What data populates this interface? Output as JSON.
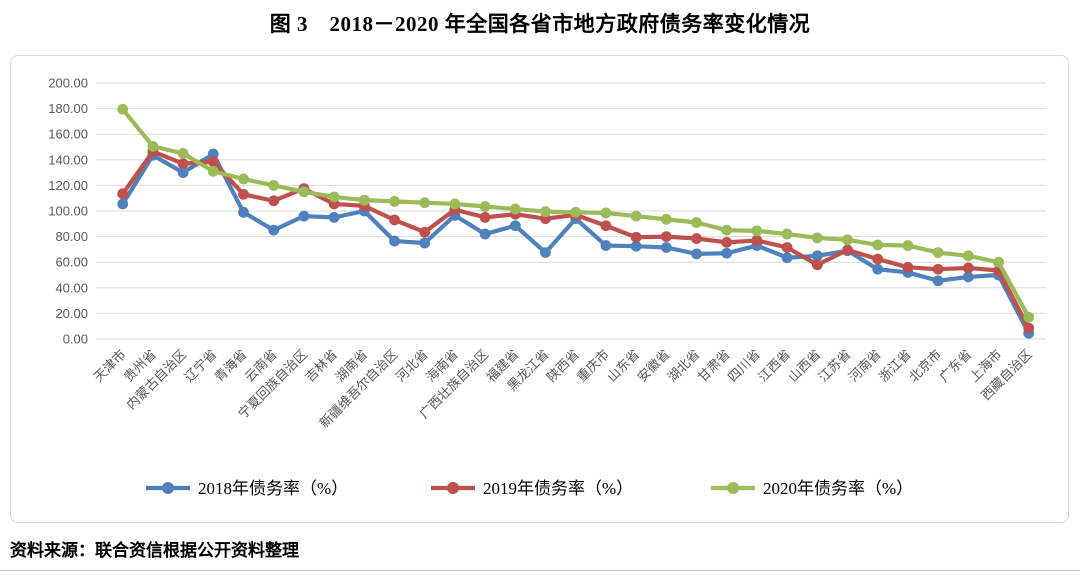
{
  "title": "图 3　2018－2020 年全国各省市地方政府债务率变化情况",
  "source_note": "资料来源：联合资信根据公开资料整理",
  "colors": {
    "series_2018": "#4F81BD",
    "series_2019": "#C0504D",
    "series_2020": "#9BBB59",
    "gridline": "#d9d9d9",
    "axis_text": "#595959",
    "box_border": "#d9d9d9"
  },
  "chart_data": {
    "type": "line",
    "title": "图 3　2018－2020 年全国各省市地方政府债务率变化情况",
    "xlabel": "",
    "ylabel": "",
    "ylim": [
      0,
      200
    ],
    "ytick_step": 20,
    "ytick_decimals": 2,
    "grid": true,
    "legend_position": "bottom",
    "categories": [
      "天津市",
      "贵州省",
      "内蒙古自治区",
      "辽宁省",
      "青海省",
      "云南省",
      "宁夏回族自治区",
      "吉林省",
      "湖南省",
      "新疆维吾尔自治区",
      "河北省",
      "海南省",
      "广西壮族自治区",
      "福建省",
      "黑龙江省",
      "陕西省",
      "重庆市",
      "山东省",
      "安徽省",
      "湖北省",
      "甘肃省",
      "四川省",
      "江西省",
      "山西省",
      "江苏省",
      "河南省",
      "浙江省",
      "北京市",
      "广东省",
      "上海市",
      "西藏自治区"
    ],
    "series": [
      {
        "name": "2018年债务率（%）",
        "color_key": "series_2018",
        "values": [
          105.5,
          143.5,
          130.0,
          144.5,
          99.0,
          85.0,
          96.0,
          95.0,
          100.0,
          76.5,
          75.0,
          96.5,
          82.0,
          88.5,
          67.5,
          94.0,
          73.0,
          72.5,
          71.5,
          66.5,
          67.0,
          73.0,
          63.5,
          65.0,
          69.0,
          54.5,
          52.0,
          45.5,
          48.5,
          50.0,
          4.5
        ]
      },
      {
        "name": "2019年债务率（%）",
        "color_key": "series_2019",
        "values": [
          113.5,
          146.5,
          137.0,
          138.5,
          113.0,
          108.0,
          117.5,
          105.5,
          104.0,
          93.0,
          83.5,
          101.0,
          95.0,
          97.5,
          94.0,
          97.0,
          88.5,
          79.5,
          80.0,
          78.5,
          75.5,
          77.0,
          71.5,
          58.0,
          69.5,
          62.5,
          56.0,
          54.5,
          55.5,
          53.5,
          8.5
        ]
      },
      {
        "name": "2020年债务率（%）",
        "color_key": "series_2020",
        "values": [
          179.5,
          150.5,
          145.0,
          131.0,
          125.0,
          120.0,
          115.0,
          111.0,
          108.5,
          107.5,
          106.5,
          105.5,
          103.5,
          101.5,
          99.5,
          99.0,
          98.5,
          96.0,
          93.5,
          91.0,
          85.0,
          84.5,
          82.0,
          79.0,
          77.5,
          73.5,
          73.0,
          67.5,
          65.0,
          60.0,
          17.0
        ]
      }
    ]
  }
}
